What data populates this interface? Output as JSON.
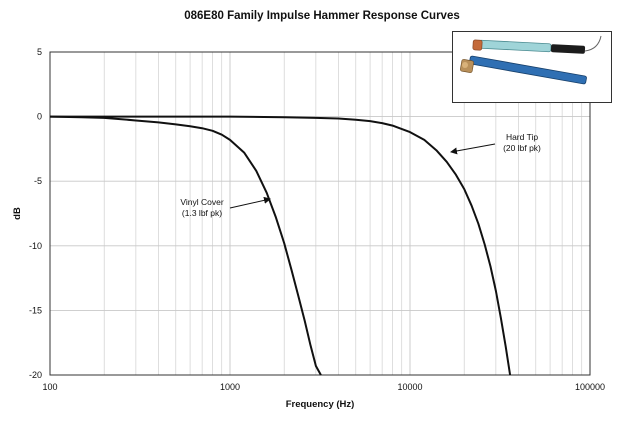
{
  "chart_data": {
    "type": "line",
    "title": "086E80 Family Impulse Hammer Response Curves",
    "xlabel": "Frequency (Hz)",
    "ylabel": "dB",
    "xscale": "log",
    "xlim": [
      100,
      100000
    ],
    "ylim": [
      -20,
      5
    ],
    "x_ticks": [
      "100",
      "1000",
      "10000",
      "100000"
    ],
    "y_ticks": [
      "5",
      "0",
      "-5",
      "-10",
      "-15",
      "-20"
    ],
    "grid": true,
    "series": [
      {
        "name": "Vinyl Cover",
        "x": [
          100,
          150,
          200,
          250,
          300,
          400,
          500,
          600,
          700,
          800,
          900,
          1000,
          1200,
          1400,
          1600,
          1800,
          2000,
          2200,
          2400,
          2600,
          2800,
          3000,
          3200
        ],
        "y": [
          0,
          -0.05,
          -0.1,
          -0.2,
          -0.3,
          -0.45,
          -0.6,
          -0.75,
          -0.9,
          -1.1,
          -1.4,
          -1.8,
          -2.8,
          -4.2,
          -5.9,
          -7.8,
          -9.8,
          -11.9,
          -13.9,
          -15.8,
          -17.7,
          -19.3,
          -20
        ]
      },
      {
        "name": "Hard Tip",
        "x": [
          100,
          200,
          500,
          1000,
          2000,
          3000,
          4000,
          5000,
          6000,
          7000,
          8000,
          10000,
          12000,
          14000,
          16000,
          18000,
          20000,
          22000,
          24000,
          26000,
          28000,
          30000,
          32000,
          34000,
          36000
        ],
        "y": [
          0,
          0,
          0,
          0,
          -0.05,
          -0.1,
          -0.15,
          -0.25,
          -0.35,
          -0.5,
          -0.7,
          -1.2,
          -1.8,
          -2.6,
          -3.5,
          -4.5,
          -5.6,
          -6.9,
          -8.3,
          -9.9,
          -11.6,
          -13.5,
          -15.6,
          -17.8,
          -20
        ]
      }
    ],
    "annotations": [
      {
        "lines": [
          "Vinyl Cover",
          "(1.3 lbf pk)"
        ]
      },
      {
        "lines": [
          "Hard Tip",
          "(20 lbf pk)"
        ]
      }
    ],
    "line_color": "#111111",
    "grid_color": "#c8c8c8"
  }
}
